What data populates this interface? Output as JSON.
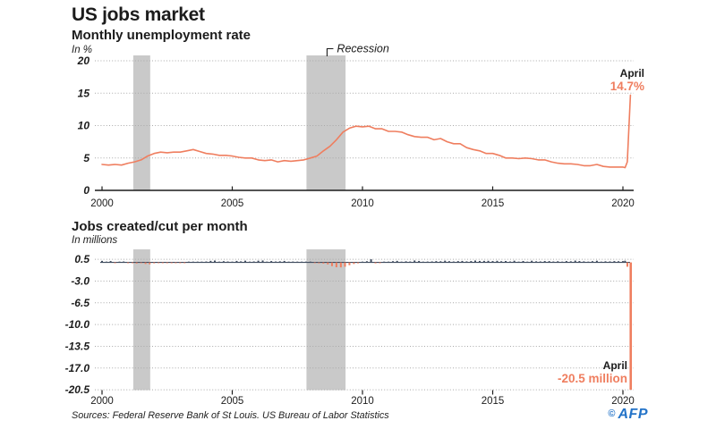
{
  "title": "US jobs market",
  "footer": {
    "sources": "Sources:  Federal Reserve Bank of St Louis. US Bureau of Labor Statistics",
    "credit_symbol": "©",
    "credit": "AFP"
  },
  "colors": {
    "orange": "#ef7e5f",
    "bar_dark": "#3f4b5e",
    "band_gray": "#c9c9c9",
    "axis": "#1c1c1c",
    "grid": "#a9a9a9",
    "afp_blue": "#2373c8"
  },
  "chart_data": [
    {
      "type": "line",
      "title": "Monthly unemployment rate",
      "ylabel": "In %",
      "xlim": [
        2000,
        2020.4
      ],
      "ylim": [
        0,
        20.8
      ],
      "grid": "dotted",
      "x_ticks": [
        2000,
        2005,
        2010,
        2015,
        2020
      ],
      "y_ticks": [
        {
          "v": 20,
          "label": "20"
        },
        {
          "v": 15,
          "label": "15"
        },
        {
          "v": 10,
          "label": "10"
        },
        {
          "v": 5,
          "label": "5"
        },
        {
          "v": 0,
          "label": "0"
        }
      ],
      "recession_label": "Recession",
      "recession_bands": [
        [
          2001.2,
          2001.85
        ],
        [
          2007.85,
          2009.35
        ]
      ],
      "annotation": {
        "x": 2020.29,
        "y": 14.7,
        "label": "April",
        "value": "14.7%"
      },
      "series": [
        [
          2000.0,
          4.0
        ],
        [
          2000.25,
          3.9
        ],
        [
          2000.5,
          4.0
        ],
        [
          2000.75,
          3.9
        ],
        [
          2001.0,
          4.2
        ],
        [
          2001.25,
          4.4
        ],
        [
          2001.5,
          4.7
        ],
        [
          2001.75,
          5.3
        ],
        [
          2002.0,
          5.7
        ],
        [
          2002.25,
          5.9
        ],
        [
          2002.5,
          5.8
        ],
        [
          2002.75,
          5.9
        ],
        [
          2003.0,
          5.9
        ],
        [
          2003.25,
          6.1
        ],
        [
          2003.5,
          6.3
        ],
        [
          2003.75,
          6.0
        ],
        [
          2004.0,
          5.7
        ],
        [
          2004.25,
          5.6
        ],
        [
          2004.5,
          5.4
        ],
        [
          2004.75,
          5.4
        ],
        [
          2005.0,
          5.3
        ],
        [
          2005.25,
          5.1
        ],
        [
          2005.5,
          5.0
        ],
        [
          2005.75,
          5.0
        ],
        [
          2006.0,
          4.7
        ],
        [
          2006.25,
          4.6
        ],
        [
          2006.5,
          4.7
        ],
        [
          2006.75,
          4.4
        ],
        [
          2007.0,
          4.6
        ],
        [
          2007.25,
          4.5
        ],
        [
          2007.5,
          4.6
        ],
        [
          2007.75,
          4.7
        ],
        [
          2008.0,
          5.0
        ],
        [
          2008.25,
          5.3
        ],
        [
          2008.5,
          6.1
        ],
        [
          2008.75,
          6.8
        ],
        [
          2009.0,
          7.8
        ],
        [
          2009.25,
          9.0
        ],
        [
          2009.5,
          9.6
        ],
        [
          2009.75,
          9.9
        ],
        [
          2010.0,
          9.8
        ],
        [
          2010.25,
          9.9
        ],
        [
          2010.5,
          9.5
        ],
        [
          2010.75,
          9.5
        ],
        [
          2011.0,
          9.1
        ],
        [
          2011.25,
          9.1
        ],
        [
          2011.5,
          9.0
        ],
        [
          2011.75,
          8.6
        ],
        [
          2012.0,
          8.3
        ],
        [
          2012.25,
          8.2
        ],
        [
          2012.5,
          8.2
        ],
        [
          2012.75,
          7.8
        ],
        [
          2013.0,
          8.0
        ],
        [
          2013.25,
          7.5
        ],
        [
          2013.5,
          7.2
        ],
        [
          2013.75,
          7.2
        ],
        [
          2014.0,
          6.6
        ],
        [
          2014.25,
          6.3
        ],
        [
          2014.5,
          6.1
        ],
        [
          2014.75,
          5.7
        ],
        [
          2015.0,
          5.7
        ],
        [
          2015.25,
          5.4
        ],
        [
          2015.5,
          5.0
        ],
        [
          2015.75,
          5.0
        ],
        [
          2016.0,
          4.9
        ],
        [
          2016.25,
          5.0
        ],
        [
          2016.5,
          4.9
        ],
        [
          2016.75,
          4.7
        ],
        [
          2017.0,
          4.7
        ],
        [
          2017.25,
          4.4
        ],
        [
          2017.5,
          4.2
        ],
        [
          2017.75,
          4.1
        ],
        [
          2018.0,
          4.1
        ],
        [
          2018.25,
          4.0
        ],
        [
          2018.5,
          3.8
        ],
        [
          2018.75,
          3.8
        ],
        [
          2019.0,
          4.0
        ],
        [
          2019.25,
          3.7
        ],
        [
          2019.5,
          3.6
        ],
        [
          2019.75,
          3.6
        ],
        [
          2020.0,
          3.6
        ],
        [
          2020.083,
          3.5
        ],
        [
          2020.167,
          4.4
        ],
        [
          2020.29,
          14.7
        ]
      ]
    },
    {
      "type": "bar",
      "title": "Jobs created/cut per month",
      "ylabel": "In millions",
      "xlim": [
        2000,
        2020.4
      ],
      "ylim": [
        -20.5,
        0.5
      ],
      "grid": "dotted",
      "x_ticks": [
        2000,
        2005,
        2010,
        2015,
        2020
      ],
      "y_ticks": [
        {
          "v": 0.5,
          "label": "0.5"
        },
        {
          "v": -3.0,
          "label": "-3.0"
        },
        {
          "v": -6.5,
          "label": "-6.5"
        },
        {
          "v": -10.0,
          "label": "-10.0"
        },
        {
          "v": -13.5,
          "label": "-13.5"
        },
        {
          "v": -17.0,
          "label": "-17.0"
        },
        {
          "v": -20.5,
          "label": "-20.5"
        }
      ],
      "recession_bands": [
        [
          2001.2,
          2001.85
        ],
        [
          2007.85,
          2009.35
        ]
      ],
      "annotation": {
        "x": 2020.29,
        "y": -20.5,
        "label": "April",
        "value": "-20.5 million"
      },
      "bar_colors": {
        "positive": "#3f4b5e",
        "negative": "#ef7e5f"
      },
      "series": [
        [
          2000.0,
          0.25
        ],
        [
          2000.17,
          0.1
        ],
        [
          2000.33,
          0.22
        ],
        [
          2000.5,
          -0.05
        ],
        [
          2000.67,
          0.12
        ],
        [
          2000.83,
          0.15
        ],
        [
          2001.0,
          -0.02
        ],
        [
          2001.17,
          -0.1
        ],
        [
          2001.33,
          -0.18
        ],
        [
          2001.5,
          -0.12
        ],
        [
          2001.67,
          -0.25
        ],
        [
          2001.83,
          -0.3
        ],
        [
          2002.0,
          -0.15
        ],
        [
          2002.17,
          -0.06
        ],
        [
          2002.33,
          -0.05
        ],
        [
          2002.5,
          -0.1
        ],
        [
          2002.67,
          -0.04
        ],
        [
          2002.83,
          -0.12
        ],
        [
          2003.0,
          -0.1
        ],
        [
          2003.17,
          -0.05
        ],
        [
          2003.33,
          0.02
        ],
        [
          2003.5,
          0.05
        ],
        [
          2003.67,
          0.1
        ],
        [
          2003.83,
          0.12
        ],
        [
          2004.0,
          0.15
        ],
        [
          2004.17,
          0.25
        ],
        [
          2004.33,
          0.3
        ],
        [
          2004.5,
          0.12
        ],
        [
          2004.67,
          0.2
        ],
        [
          2004.83,
          0.15
        ],
        [
          2005.0,
          0.13
        ],
        [
          2005.17,
          0.24
        ],
        [
          2005.33,
          0.17
        ],
        [
          2005.5,
          0.28
        ],
        [
          2005.67,
          0.08
        ],
        [
          2005.83,
          0.16
        ],
        [
          2006.0,
          0.28
        ],
        [
          2006.17,
          0.31
        ],
        [
          2006.33,
          0.1
        ],
        [
          2006.5,
          0.22
        ],
        [
          2006.67,
          0.15
        ],
        [
          2006.83,
          0.18
        ],
        [
          2007.0,
          0.24
        ],
        [
          2007.17,
          0.09
        ],
        [
          2007.33,
          0.14
        ],
        [
          2007.5,
          0.08
        ],
        [
          2007.67,
          0.1
        ],
        [
          2007.83,
          0.12
        ],
        [
          2008.0,
          0.02
        ],
        [
          2008.17,
          -0.08
        ],
        [
          2008.33,
          -0.15
        ],
        [
          2008.5,
          -0.2
        ],
        [
          2008.67,
          -0.32
        ],
        [
          2008.83,
          -0.6
        ],
        [
          2009.0,
          -0.78
        ],
        [
          2009.17,
          -0.8
        ],
        [
          2009.33,
          -0.7
        ],
        [
          2009.5,
          -0.45
        ],
        [
          2009.67,
          -0.25
        ],
        [
          2009.83,
          -0.15
        ],
        [
          2010.0,
          0.02
        ],
        [
          2010.17,
          0.19
        ],
        [
          2010.33,
          0.5
        ],
        [
          2010.5,
          -0.15
        ],
        [
          2010.67,
          -0.05
        ],
        [
          2010.83,
          0.12
        ],
        [
          2011.0,
          0.08
        ],
        [
          2011.17,
          0.2
        ],
        [
          2011.33,
          0.25
        ],
        [
          2011.5,
          0.1
        ],
        [
          2011.67,
          0.18
        ],
        [
          2011.83,
          0.15
        ],
        [
          2012.0,
          0.31
        ],
        [
          2012.17,
          0.24
        ],
        [
          2012.33,
          0.11
        ],
        [
          2012.5,
          0.14
        ],
        [
          2012.67,
          0.16
        ],
        [
          2012.83,
          0.21
        ],
        [
          2013.0,
          0.19
        ],
        [
          2013.17,
          0.28
        ],
        [
          2013.33,
          0.2
        ],
        [
          2013.5,
          0.15
        ],
        [
          2013.67,
          0.21
        ],
        [
          2013.83,
          0.24
        ],
        [
          2014.0,
          0.17
        ],
        [
          2014.17,
          0.22
        ],
        [
          2014.33,
          0.3
        ],
        [
          2014.5,
          0.24
        ],
        [
          2014.67,
          0.25
        ],
        [
          2014.83,
          0.26
        ],
        [
          2015.0,
          0.22
        ],
        [
          2015.17,
          0.26
        ],
        [
          2015.33,
          0.19
        ],
        [
          2015.5,
          0.23
        ],
        [
          2015.67,
          0.15
        ],
        [
          2015.83,
          0.27
        ],
        [
          2016.0,
          0.12
        ],
        [
          2016.17,
          0.23
        ],
        [
          2016.33,
          0.09
        ],
        [
          2016.5,
          0.27
        ],
        [
          2016.67,
          0.18
        ],
        [
          2016.83,
          0.16
        ],
        [
          2017.0,
          0.22
        ],
        [
          2017.17,
          0.21
        ],
        [
          2017.33,
          0.15
        ],
        [
          2017.5,
          0.19
        ],
        [
          2017.67,
          0.1
        ],
        [
          2017.83,
          0.22
        ],
        [
          2018.0,
          0.18
        ],
        [
          2018.17,
          0.29
        ],
        [
          2018.33,
          0.22
        ],
        [
          2018.5,
          0.17
        ],
        [
          2018.67,
          0.12
        ],
        [
          2018.83,
          0.2
        ],
        [
          2019.0,
          0.27
        ],
        [
          2019.17,
          0.06
        ],
        [
          2019.33,
          0.18
        ],
        [
          2019.5,
          0.16
        ],
        [
          2019.67,
          0.21
        ],
        [
          2019.83,
          0.19
        ],
        [
          2020.0,
          0.21
        ],
        [
          2020.08,
          0.27
        ],
        [
          2020.17,
          -0.7
        ],
        [
          2020.29,
          -20.5
        ]
      ]
    }
  ]
}
